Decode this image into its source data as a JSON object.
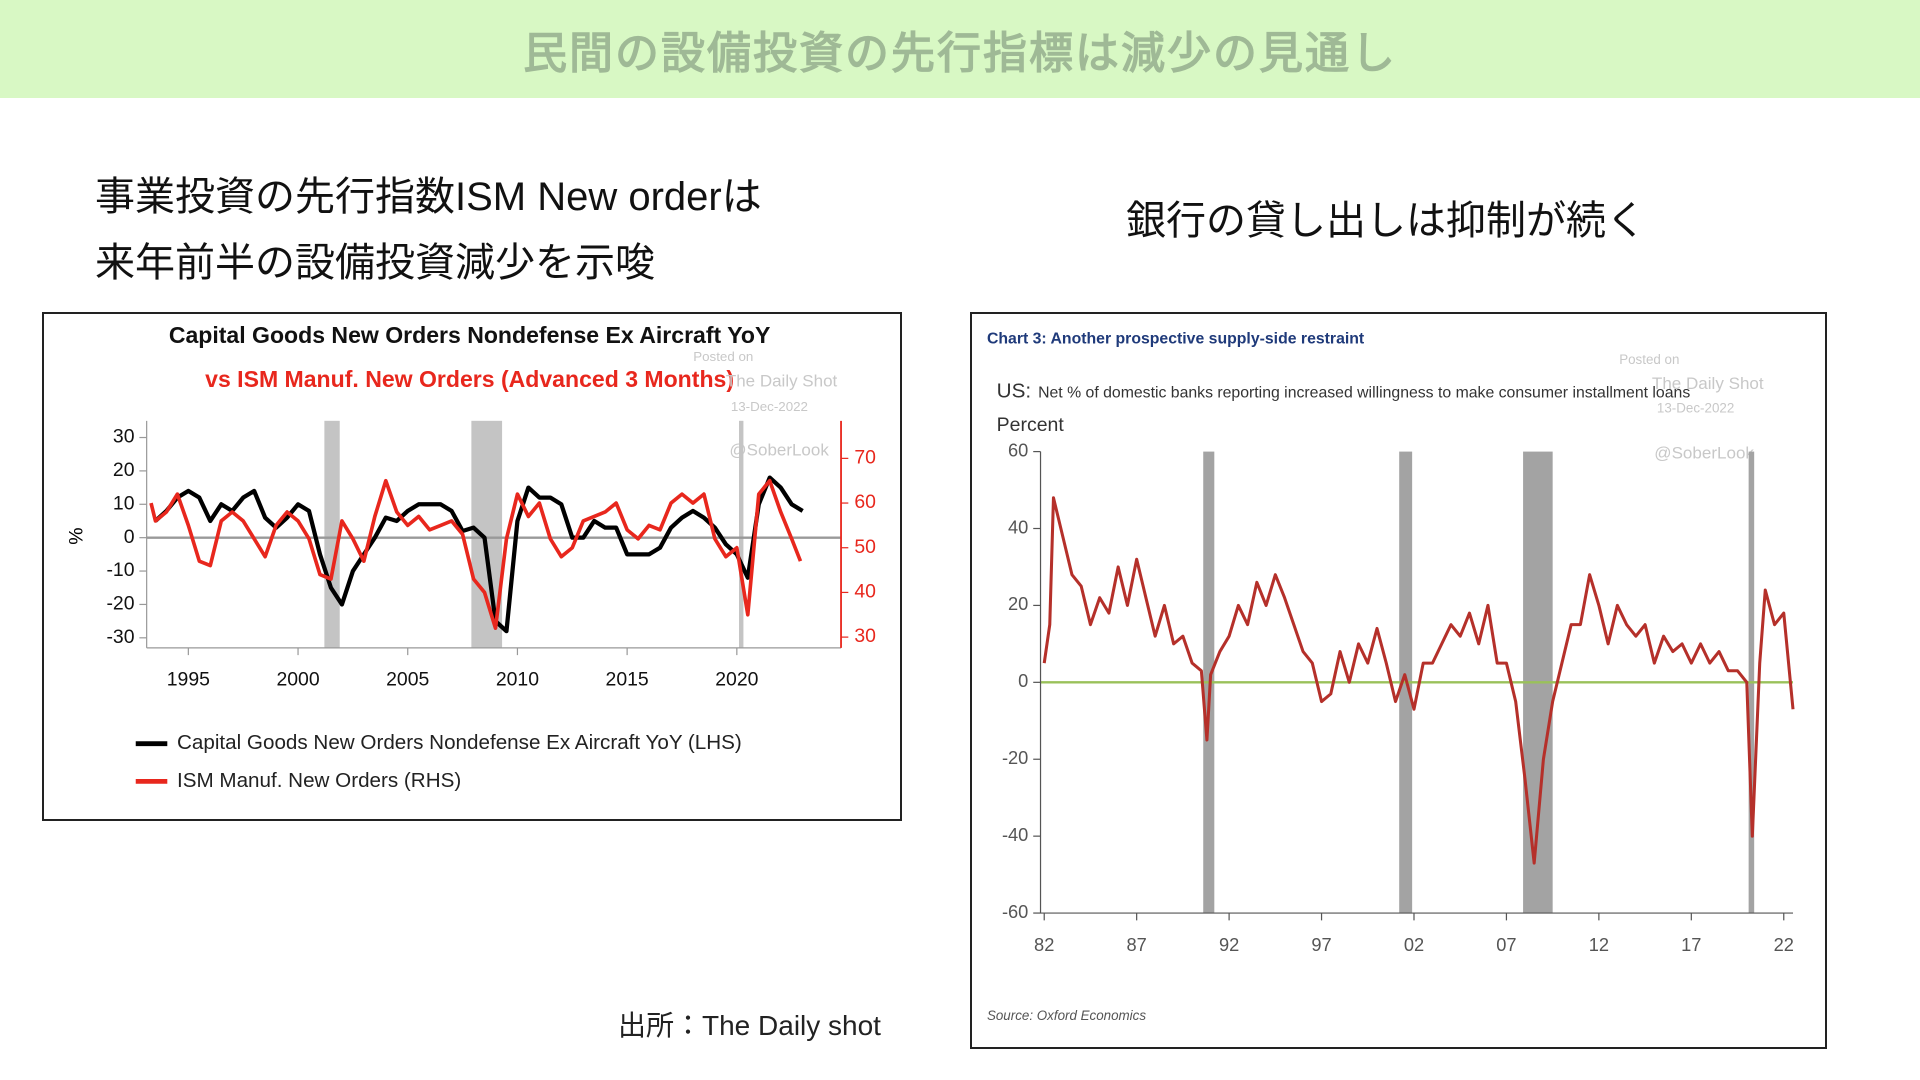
{
  "slide": {
    "title": "民間の設備投資の先行指標は減少の見通し",
    "left_caption": [
      "事業投資の先行指数ISM New orderは",
      "来年前半の設備投資減少を示唆"
    ],
    "right_caption": "銀行の貸し出しは抑制が続く",
    "source": "出所：The Daily shot"
  },
  "chart_data": [
    {
      "type": "line",
      "title": "Capital Goods New Orders Nondefense Ex Aircraft YoY",
      "subtitle": "vs ISM Manuf. New Orders (Advanced 3 Months)",
      "title_color": "#111111",
      "subtitle_color": "#e8271d",
      "ylabel": "%",
      "watermark": [
        "Posted on",
        "The Daily Shot",
        "13-Dec-2022",
        "@SoberLook"
      ],
      "xlim": [
        1993.1,
        2024.75
      ],
      "xticks": [
        1995,
        2000,
        2005,
        2010,
        2015,
        2020
      ],
      "ylim": [
        -33,
        35
      ],
      "yticks": [
        -30,
        -20,
        -10,
        0,
        10,
        20,
        30
      ],
      "y2lim": [
        27.6,
        78.4
      ],
      "y2ticks": [
        30,
        40,
        50,
        60,
        70
      ],
      "zero_line_color": "#999999",
      "shading_color": "#c4c4c4",
      "shaded_periods": [
        [
          2001.2,
          2001.9
        ],
        [
          2007.9,
          2009.3
        ],
        [
          2020.1,
          2020.3
        ]
      ],
      "legend": "bottom-left",
      "series": [
        {
          "name": "Capital Goods New Orders Nondefense Ex Aircraft YoY (LHS)",
          "color": "#000000",
          "width": 3.5,
          "x": [
            1993.5,
            1994,
            1994.5,
            1995,
            1995.5,
            1996,
            1996.5,
            1997,
            1997.5,
            1998,
            1998.5,
            1999,
            1999.5,
            2000,
            2000.5,
            2001,
            2001.5,
            2002,
            2002.5,
            2003,
            2003.5,
            2004,
            2004.5,
            2005,
            2005.5,
            2006,
            2006.5,
            2007,
            2007.5,
            2008,
            2008.5,
            2009,
            2009.5,
            2010,
            2010.5,
            2011,
            2011.5,
            2012,
            2012.5,
            2013,
            2013.5,
            2014,
            2014.5,
            2015,
            2015.5,
            2016,
            2016.5,
            2017,
            2017.5,
            2018,
            2018.5,
            2019,
            2019.5,
            2020,
            2020.5,
            2021,
            2021.5,
            2022,
            2022.5,
            2023
          ],
          "values": [
            5,
            8,
            12,
            14,
            12,
            5,
            10,
            8,
            12,
            14,
            6,
            3,
            6,
            10,
            8,
            -5,
            -15,
            -20,
            -10,
            -5,
            0,
            6,
            5,
            8,
            10,
            10,
            10,
            8,
            2,
            3,
            0,
            -25,
            -28,
            5,
            15,
            12,
            12,
            10,
            0,
            0,
            5,
            3,
            3,
            -5,
            -5,
            -5,
            -3,
            3,
            6,
            8,
            6,
            3,
            -2,
            -5,
            -12,
            10,
            18,
            15,
            10,
            8
          ]
        },
        {
          "name": "ISM Manuf. New Orders (RHS)",
          "color": "#e8271d",
          "width": 3,
          "axis": "y2",
          "x": [
            1993.3,
            1993.5,
            1994,
            1994.5,
            1995,
            1995.5,
            1996,
            1996.5,
            1997,
            1997.5,
            1998,
            1998.5,
            1999,
            1999.5,
            2000,
            2000.5,
            2001,
            2001.5,
            2002,
            2002.5,
            2003,
            2003.5,
            2004,
            2004.5,
            2005,
            2005.5,
            2006,
            2006.5,
            2007,
            2007.5,
            2008,
            2008.5,
            2009,
            2009.5,
            2010,
            2010.5,
            2011,
            2011.5,
            2012,
            2012.5,
            2013,
            2013.5,
            2014,
            2014.5,
            2015,
            2015.5,
            2016,
            2016.5,
            2017,
            2017.5,
            2018,
            2018.5,
            2019,
            2019.5,
            2020,
            2020.5,
            2021,
            2021.5,
            2022,
            2022.5,
            2022.9
          ],
          "values": [
            60,
            56,
            58,
            62,
            55,
            47,
            46,
            56,
            58,
            56,
            52,
            48,
            55,
            58,
            56,
            52,
            44,
            43,
            56,
            52,
            47,
            57,
            65,
            58,
            55,
            57,
            54,
            55,
            56,
            53,
            43,
            40,
            32,
            52,
            62,
            57,
            60,
            52,
            48,
            50,
            56,
            57,
            58,
            60,
            54,
            52,
            55,
            54,
            60,
            62,
            60,
            62,
            52,
            48,
            50,
            35,
            62,
            65,
            58,
            52,
            47
          ]
        }
      ]
    },
    {
      "type": "line",
      "title": "Chart 3: Another prospective supply-side restraint",
      "title_color": "#1f3a7a",
      "region_label": "US:",
      "subtitle": "Net % of domestic banks reporting increased willingness to make consumer installment loans",
      "ylabel": "Percent",
      "source": "Source: Oxford Economics",
      "watermark": [
        "Posted on",
        "The Daily Shot",
        "13-Dec-2022",
        "@SoberLook"
      ],
      "xlim": [
        1981.8,
        2022.5
      ],
      "xticks": [
        {
          "value": 1982,
          "label": "82"
        },
        {
          "value": 1987,
          "label": "87"
        },
        {
          "value": 1992,
          "label": "92"
        },
        {
          "value": 1997,
          "label": "97"
        },
        {
          "value": 2002,
          "label": "02"
        },
        {
          "value": 2007,
          "label": "07"
        },
        {
          "value": 2012,
          "label": "12"
        },
        {
          "value": 2017,
          "label": "17"
        },
        {
          "value": 2022,
          "label": "22"
        }
      ],
      "ylim": [
        -60,
        60
      ],
      "yticks": [
        -60,
        -40,
        -20,
        0,
        20,
        40,
        60
      ],
      "zero_line_color": "#9ac15a",
      "shading_color": "#a3a3a3",
      "shaded_periods": [
        [
          1990.6,
          1991.2
        ],
        [
          2001.2,
          2001.9
        ],
        [
          2007.9,
          2009.5
        ],
        [
          2020.1,
          2020.4
        ]
      ],
      "series": [
        {
          "name": "Net % of domestic banks",
          "color": "#b5302a",
          "width": 2.5,
          "x": [
            1982,
            1982.3,
            1982.5,
            1983,
            1983.5,
            1984,
            1984.5,
            1985,
            1985.5,
            1986,
            1986.5,
            1987,
            1987.5,
            1988,
            1988.5,
            1989,
            1989.5,
            1990,
            1990.5,
            1990.8,
            1991,
            1991.5,
            1992,
            1992.5,
            1993,
            1993.5,
            1994,
            1994.5,
            1995,
            1995.5,
            1996,
            1996.5,
            1997,
            1997.5,
            1998,
            1998.5,
            1999,
            1999.5,
            2000,
            2000.5,
            2001,
            2001.5,
            2002,
            2002.5,
            2003,
            2003.5,
            2004,
            2004.5,
            2005,
            2005.5,
            2006,
            2006.5,
            2007,
            2007.5,
            2008,
            2008.5,
            2009,
            2009.5,
            2010,
            2010.5,
            2011,
            2011.5,
            2012,
            2012.5,
            2013,
            2013.5,
            2014,
            2014.5,
            2015,
            2015.5,
            2016,
            2016.5,
            2017,
            2017.5,
            2018,
            2018.5,
            2019,
            2019.5,
            2020,
            2020.3,
            2020.7,
            2021,
            2021.5,
            2022,
            2022.5
          ],
          "values": [
            5,
            15,
            48,
            38,
            28,
            25,
            15,
            22,
            18,
            30,
            20,
            32,
            22,
            12,
            20,
            10,
            12,
            5,
            3,
            -15,
            2,
            8,
            12,
            20,
            15,
            26,
            20,
            28,
            22,
            15,
            8,
            5,
            -5,
            -3,
            8,
            0,
            10,
            5,
            14,
            5,
            -5,
            2,
            -7,
            5,
            5,
            10,
            15,
            12,
            18,
            10,
            20,
            5,
            5,
            -5,
            -25,
            -47,
            -20,
            -5,
            5,
            15,
            15,
            28,
            20,
            10,
            20,
            15,
            12,
            15,
            5,
            12,
            8,
            10,
            5,
            10,
            5,
            8,
            3,
            3,
            0,
            -40,
            5,
            24,
            15,
            18,
            -7
          ]
        }
      ]
    }
  ]
}
